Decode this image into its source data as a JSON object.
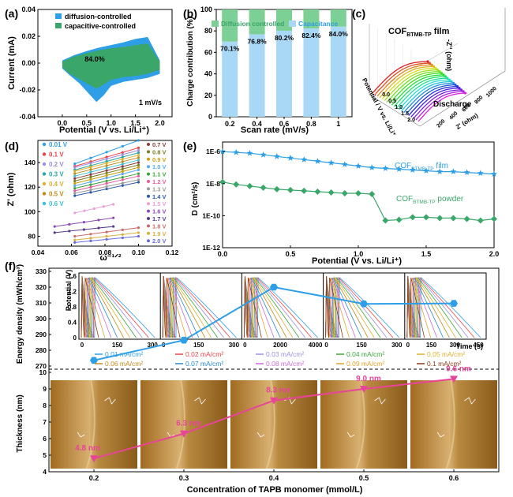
{
  "colors": {
    "blue": "#2e9fe6",
    "green": "#3aa66a",
    "lightblue": "#a9d8f6",
    "lightgreen": "#7ccf95",
    "pink": "#e8449a",
    "film": "#2e9fe6",
    "powder": "#3aa66a"
  },
  "panels": {
    "a": "(a)",
    "b": "(b)",
    "c": "(c)",
    "d": "(d)",
    "e": "(e)",
    "f": "(f)"
  },
  "chart_data": [
    {
      "id": "a",
      "type": "area",
      "xlabel": "Potential (V vs. Li/Li⁺)",
      "ylabel": "Current (mA)",
      "xlim": [
        -0.5,
        2.25
      ],
      "ylim": [
        -0.04,
        0.04
      ],
      "xticks": [
        "0.0",
        "0.5",
        "1.0",
        "1.5",
        "2.0"
      ],
      "xtick_vals": [
        0,
        0.5,
        1,
        1.5,
        2
      ],
      "yticks": [
        "-0.04",
        "-0.02",
        "0.00",
        "0.02",
        "0.04"
      ],
      "ytick_vals": [
        -0.04,
        -0.02,
        0,
        0.02,
        0.04
      ],
      "legend": [
        "diffusion-controlled",
        "capacitive-controlled"
      ],
      "annotations": {
        "percent": "84.0%",
        "rate": "1 mV/s"
      },
      "total_upper": [
        [
          0,
          0.002
        ],
        [
          0.25,
          0.006
        ],
        [
          0.5,
          0.009
        ],
        [
          0.75,
          0.0115
        ],
        [
          1,
          0.0135
        ],
        [
          1.25,
          0.0155
        ],
        [
          1.5,
          0.018
        ],
        [
          1.75,
          0.0195
        ],
        [
          2,
          0.002
        ]
      ],
      "total_lower": [
        [
          2,
          -0.008
        ],
        [
          1.75,
          -0.011
        ],
        [
          1.5,
          -0.0125
        ],
        [
          1.25,
          -0.014
        ],
        [
          1,
          -0.017
        ],
        [
          0.85,
          -0.024
        ],
        [
          0.7,
          -0.029
        ],
        [
          0.55,
          -0.023
        ],
        [
          0.35,
          -0.015
        ],
        [
          0.15,
          -0.009
        ],
        [
          0,
          -0.004
        ]
      ],
      "cap_upper": [
        [
          0,
          0.001
        ],
        [
          0.25,
          0.005
        ],
        [
          0.5,
          0.0075
        ],
        [
          0.75,
          0.0095
        ],
        [
          1,
          0.011
        ],
        [
          1.25,
          0.012
        ],
        [
          1.5,
          0.0135
        ],
        [
          1.75,
          0.0145
        ],
        [
          2,
          0.001
        ]
      ],
      "cap_lower": [
        [
          2,
          -0.005
        ],
        [
          1.75,
          -0.008
        ],
        [
          1.5,
          -0.0095
        ],
        [
          1.25,
          -0.0105
        ],
        [
          1,
          -0.0125
        ],
        [
          0.85,
          -0.016
        ],
        [
          0.7,
          -0.019
        ],
        [
          0.55,
          -0.016
        ],
        [
          0.35,
          -0.012
        ],
        [
          0.15,
          -0.008
        ],
        [
          0,
          -0.003
        ]
      ]
    },
    {
      "id": "b",
      "type": "bar",
      "xlabel": "Scan rate (mV/s)",
      "ylabel": "Charge contribution (%)",
      "categories": [
        "0.2",
        "0.4",
        "0.6",
        "0.8",
        "1"
      ],
      "ylim": [
        0,
        100
      ],
      "yticks": [
        "0",
        "20",
        "40",
        "60",
        "80",
        "100"
      ],
      "ytick_vals": [
        0,
        20,
        40,
        60,
        80,
        100
      ],
      "series": [
        {
          "name": "Diffusion controlled",
          "values": [
            29.9,
            23.2,
            19.8,
            17.6,
            16.0
          ]
        },
        {
          "name": "Capacitance",
          "values": [
            70.1,
            76.8,
            80.2,
            82.4,
            84.0
          ]
        }
      ],
      "labels": [
        "70.1%",
        "76.8%",
        "80.2%",
        "82.4%",
        "84.0%"
      ]
    },
    {
      "id": "c",
      "type": "line",
      "title_main": "COF",
      "title_sub": "BTMB-TP",
      "title_tail": " film",
      "zlabel": "-Z'' (ohm)",
      "xlabel": "Z' (ohm)",
      "ylabel": "Potential / V vs. Li/Li⁺",
      "annotation": "Discharge",
      "xticks": [
        "200",
        "400",
        "600",
        "800",
        "1000"
      ],
      "yticks": [
        "0.0",
        "0.5",
        "1.0",
        "1.5",
        "2.0"
      ]
    },
    {
      "id": "d",
      "type": "scatter",
      "xlabel": "ω⁻¹ᐟ²",
      "ylabel": "Z' (ohm)",
      "xlim": [
        0.04,
        0.12
      ],
      "ylim": [
        72,
        158
      ],
      "xticks": [
        "0.04",
        "0.06",
        "0.08",
        "0.10",
        "0.12"
      ],
      "xtick_vals": [
        0.04,
        0.06,
        0.08,
        0.1,
        0.12
      ],
      "yticks": [
        "80",
        "100",
        "120",
        "140"
      ],
      "ytick_vals": [
        80,
        100,
        120,
        140
      ],
      "legend_left": [
        "0.01 V",
        "0.1 V",
        "0.2 V",
        "0.3 V",
        "0.4 V",
        "0.5 V",
        "0.6 V"
      ],
      "legend_right": [
        "0.7 V",
        "0.8 V",
        "0.9 V",
        "1.0 V",
        "1.1 V",
        "1.2 V",
        "1.3 V",
        "1.4 V",
        "1.5 V",
        "1.6 V",
        "1.7 V",
        "1.8 V",
        "1.9 V",
        "2.0 V"
      ],
      "series_colors": [
        "#2e9fe6",
        "#e8454a",
        "#9f8fe0",
        "#2aa5a5",
        "#e0b030",
        "#c08a1a",
        "#3cc0d8",
        "#8b3a3a",
        "#7a7a20",
        "#c8a010",
        "#55aaee",
        "#3aa63a",
        "#e85a9a",
        "#9a9a9a",
        "#2a5aa8",
        "#e8a0d8",
        "#8a4ab0",
        "#5a3a8a",
        "#c86a6a",
        "#d8b040",
        "#6a6ad8"
      ],
      "lines": [
        [
          [
            0.062,
            139
          ],
          [
            0.1,
            158
          ]
        ],
        [
          [
            0.062,
            137
          ],
          [
            0.1,
            152
          ]
        ],
        [
          [
            0.062,
            136
          ],
          [
            0.1,
            150
          ]
        ],
        [
          [
            0.062,
            134
          ],
          [
            0.1,
            148
          ]
        ],
        [
          [
            0.062,
            133
          ],
          [
            0.1,
            146
          ]
        ],
        [
          [
            0.062,
            131
          ],
          [
            0.1,
            144
          ]
        ],
        [
          [
            0.062,
            129
          ],
          [
            0.1,
            142
          ]
        ],
        [
          [
            0.062,
            127
          ],
          [
            0.1,
            140
          ]
        ],
        [
          [
            0.062,
            125
          ],
          [
            0.1,
            138
          ]
        ],
        [
          [
            0.062,
            123
          ],
          [
            0.1,
            136
          ]
        ],
        [
          [
            0.062,
            121
          ],
          [
            0.1,
            134
          ]
        ],
        [
          [
            0.062,
            119
          ],
          [
            0.1,
            131
          ]
        ],
        [
          [
            0.062,
            117
          ],
          [
            0.1,
            129
          ]
        ],
        [
          [
            0.062,
            115
          ],
          [
            0.1,
            126
          ]
        ],
        [
          [
            0.062,
            113
          ],
          [
            0.1,
            124
          ]
        ],
        [
          [
            0.062,
            99
          ],
          [
            0.085,
            106
          ]
        ],
        [
          [
            0.05,
            88
          ],
          [
            0.085,
            95
          ]
        ],
        [
          [
            0.05,
            83
          ],
          [
            0.085,
            88
          ]
        ],
        [
          [
            0.062,
            80
          ],
          [
            0.1,
            87
          ]
        ],
        [
          [
            0.062,
            77
          ],
          [
            0.1,
            83
          ]
        ],
        [
          [
            0.062,
            75
          ],
          [
            0.1,
            80
          ]
        ]
      ]
    },
    {
      "id": "e",
      "type": "line",
      "xlabel": "Potential (V vs. Li/Li⁺)",
      "ylabel": "D (cm²/s)",
      "xlim": [
        0,
        2
      ],
      "ylim": [
        -12,
        -5.4
      ],
      "xticks": [
        "0.0",
        "0.5",
        "1.0",
        "1.5",
        "2.0"
      ],
      "xtick_vals": [
        0,
        0.5,
        1,
        1.5,
        2
      ],
      "yticks": [
        "1E-6",
        "1E-8",
        "1E-10",
        "1E-12"
      ],
      "ytick_vals": [
        -6,
        -8,
        -10,
        -12
      ],
      "series": [
        {
          "name_main": "COF",
          "name_sub": "BTMB-TP",
          "name_tail": " film",
          "x": [
            0,
            0.1,
            0.2,
            0.3,
            0.4,
            0.5,
            0.6,
            0.7,
            0.8,
            0.9,
            1.0,
            1.1,
            1.2,
            1.3,
            1.4,
            1.5,
            1.6,
            1.7,
            1.8,
            1.9,
            2.0
          ],
          "log_y": [
            -6.0,
            -6.05,
            -6.1,
            -6.2,
            -6.3,
            -6.4,
            -6.5,
            -6.6,
            -6.7,
            -6.8,
            -6.9,
            -7.0,
            -7.05,
            -7.1,
            -7.15,
            -7.2,
            -7.25,
            -7.25,
            -7.3,
            -7.35,
            -7.4
          ]
        },
        {
          "name_main": "COF",
          "name_sub": "BTMB-TP",
          "name_tail": " powder",
          "x": [
            0,
            0.1,
            0.2,
            0.3,
            0.4,
            0.5,
            0.6,
            0.7,
            0.8,
            0.9,
            1.0,
            1.1,
            1.2,
            1.3,
            1.4,
            1.5,
            1.6,
            1.7,
            1.8,
            1.9,
            2.0
          ],
          "log_y": [
            -7.9,
            -8.05,
            -8.15,
            -8.25,
            -8.35,
            -8.4,
            -8.45,
            -8.5,
            -8.55,
            -8.6,
            -8.6,
            -8.65,
            -10.3,
            -10.25,
            -10.1,
            -10.1,
            -10.15,
            -10.15,
            -10.2,
            -10.3,
            -10.2
          ]
        }
      ]
    },
    {
      "id": "f_top",
      "type": "line",
      "ylabel": "Energy density (mWh/cm³)",
      "inset_ylabel": "Potential (V)",
      "inset_xlabel": "Time (s)",
      "categories_x": [
        0.2,
        0.3,
        0.4,
        0.5,
        0.6
      ],
      "ylim": [
        270,
        330
      ],
      "yticks": [
        "270",
        "280",
        "290",
        "300",
        "310",
        "320",
        "330"
      ],
      "ytick_vals": [
        270,
        280,
        290,
        300,
        310,
        320,
        330
      ],
      "values": [
        273.6,
        286.4,
        320.0,
        309.4,
        309.7
      ],
      "inset_yticks": [
        "0",
        "0.4",
        "0.8",
        "1.2",
        "1.6"
      ],
      "inset_xticks": [
        [
          "0",
          "150",
          "300"
        ],
        [
          "0",
          "150",
          "300"
        ],
        [
          "0",
          "2000",
          "4000"
        ],
        [
          "0",
          "150",
          "300"
        ],
        [
          "0",
          "150",
          "300",
          "450"
        ]
      ],
      "current_legend": [
        "0.01 mA/cm²",
        "0.02 mA/cm²",
        "0.03 mA/cm²",
        "0.04 mA/cm²",
        "0.05 mA/cm²",
        "0.06 mA/cm²",
        "0.07 mA/cm²",
        "0.08 mA/cm²",
        "0.09 mA/cm²",
        "0.1 mA/cm²"
      ],
      "current_colors": [
        "#2e9fe6",
        "#e8454a",
        "#9f8fe0",
        "#3aa63a",
        "#e0b030",
        "#c08a1a",
        "#2a88c8",
        "#c86ad8",
        "#e8a030",
        "#8b3a1a"
      ]
    },
    {
      "id": "f_bottom",
      "type": "line",
      "xlabel": "Concentration of TAPB monomer (mmol/L)",
      "ylabel": "Thickness (nm)",
      "categories": [
        "0.2",
        "0.3",
        "0.4",
        "0.5",
        "0.6"
      ],
      "x": [
        0.2,
        0.3,
        0.4,
        0.5,
        0.6
      ],
      "xlim": [
        0.15,
        0.65
      ],
      "ylim": [
        4,
        10
      ],
      "yticks": [
        "4",
        "5",
        "6",
        "7",
        "8",
        "9",
        "10"
      ],
      "ytick_vals": [
        4,
        5,
        6,
        7,
        8,
        9,
        10
      ],
      "values": [
        4.8,
        6.3,
        8.3,
        9.0,
        9.6
      ],
      "labels": [
        "4.8 nm",
        "6.3 nm",
        "8.3 nm",
        "9.0 nm",
        "9.6 nm"
      ]
    }
  ]
}
